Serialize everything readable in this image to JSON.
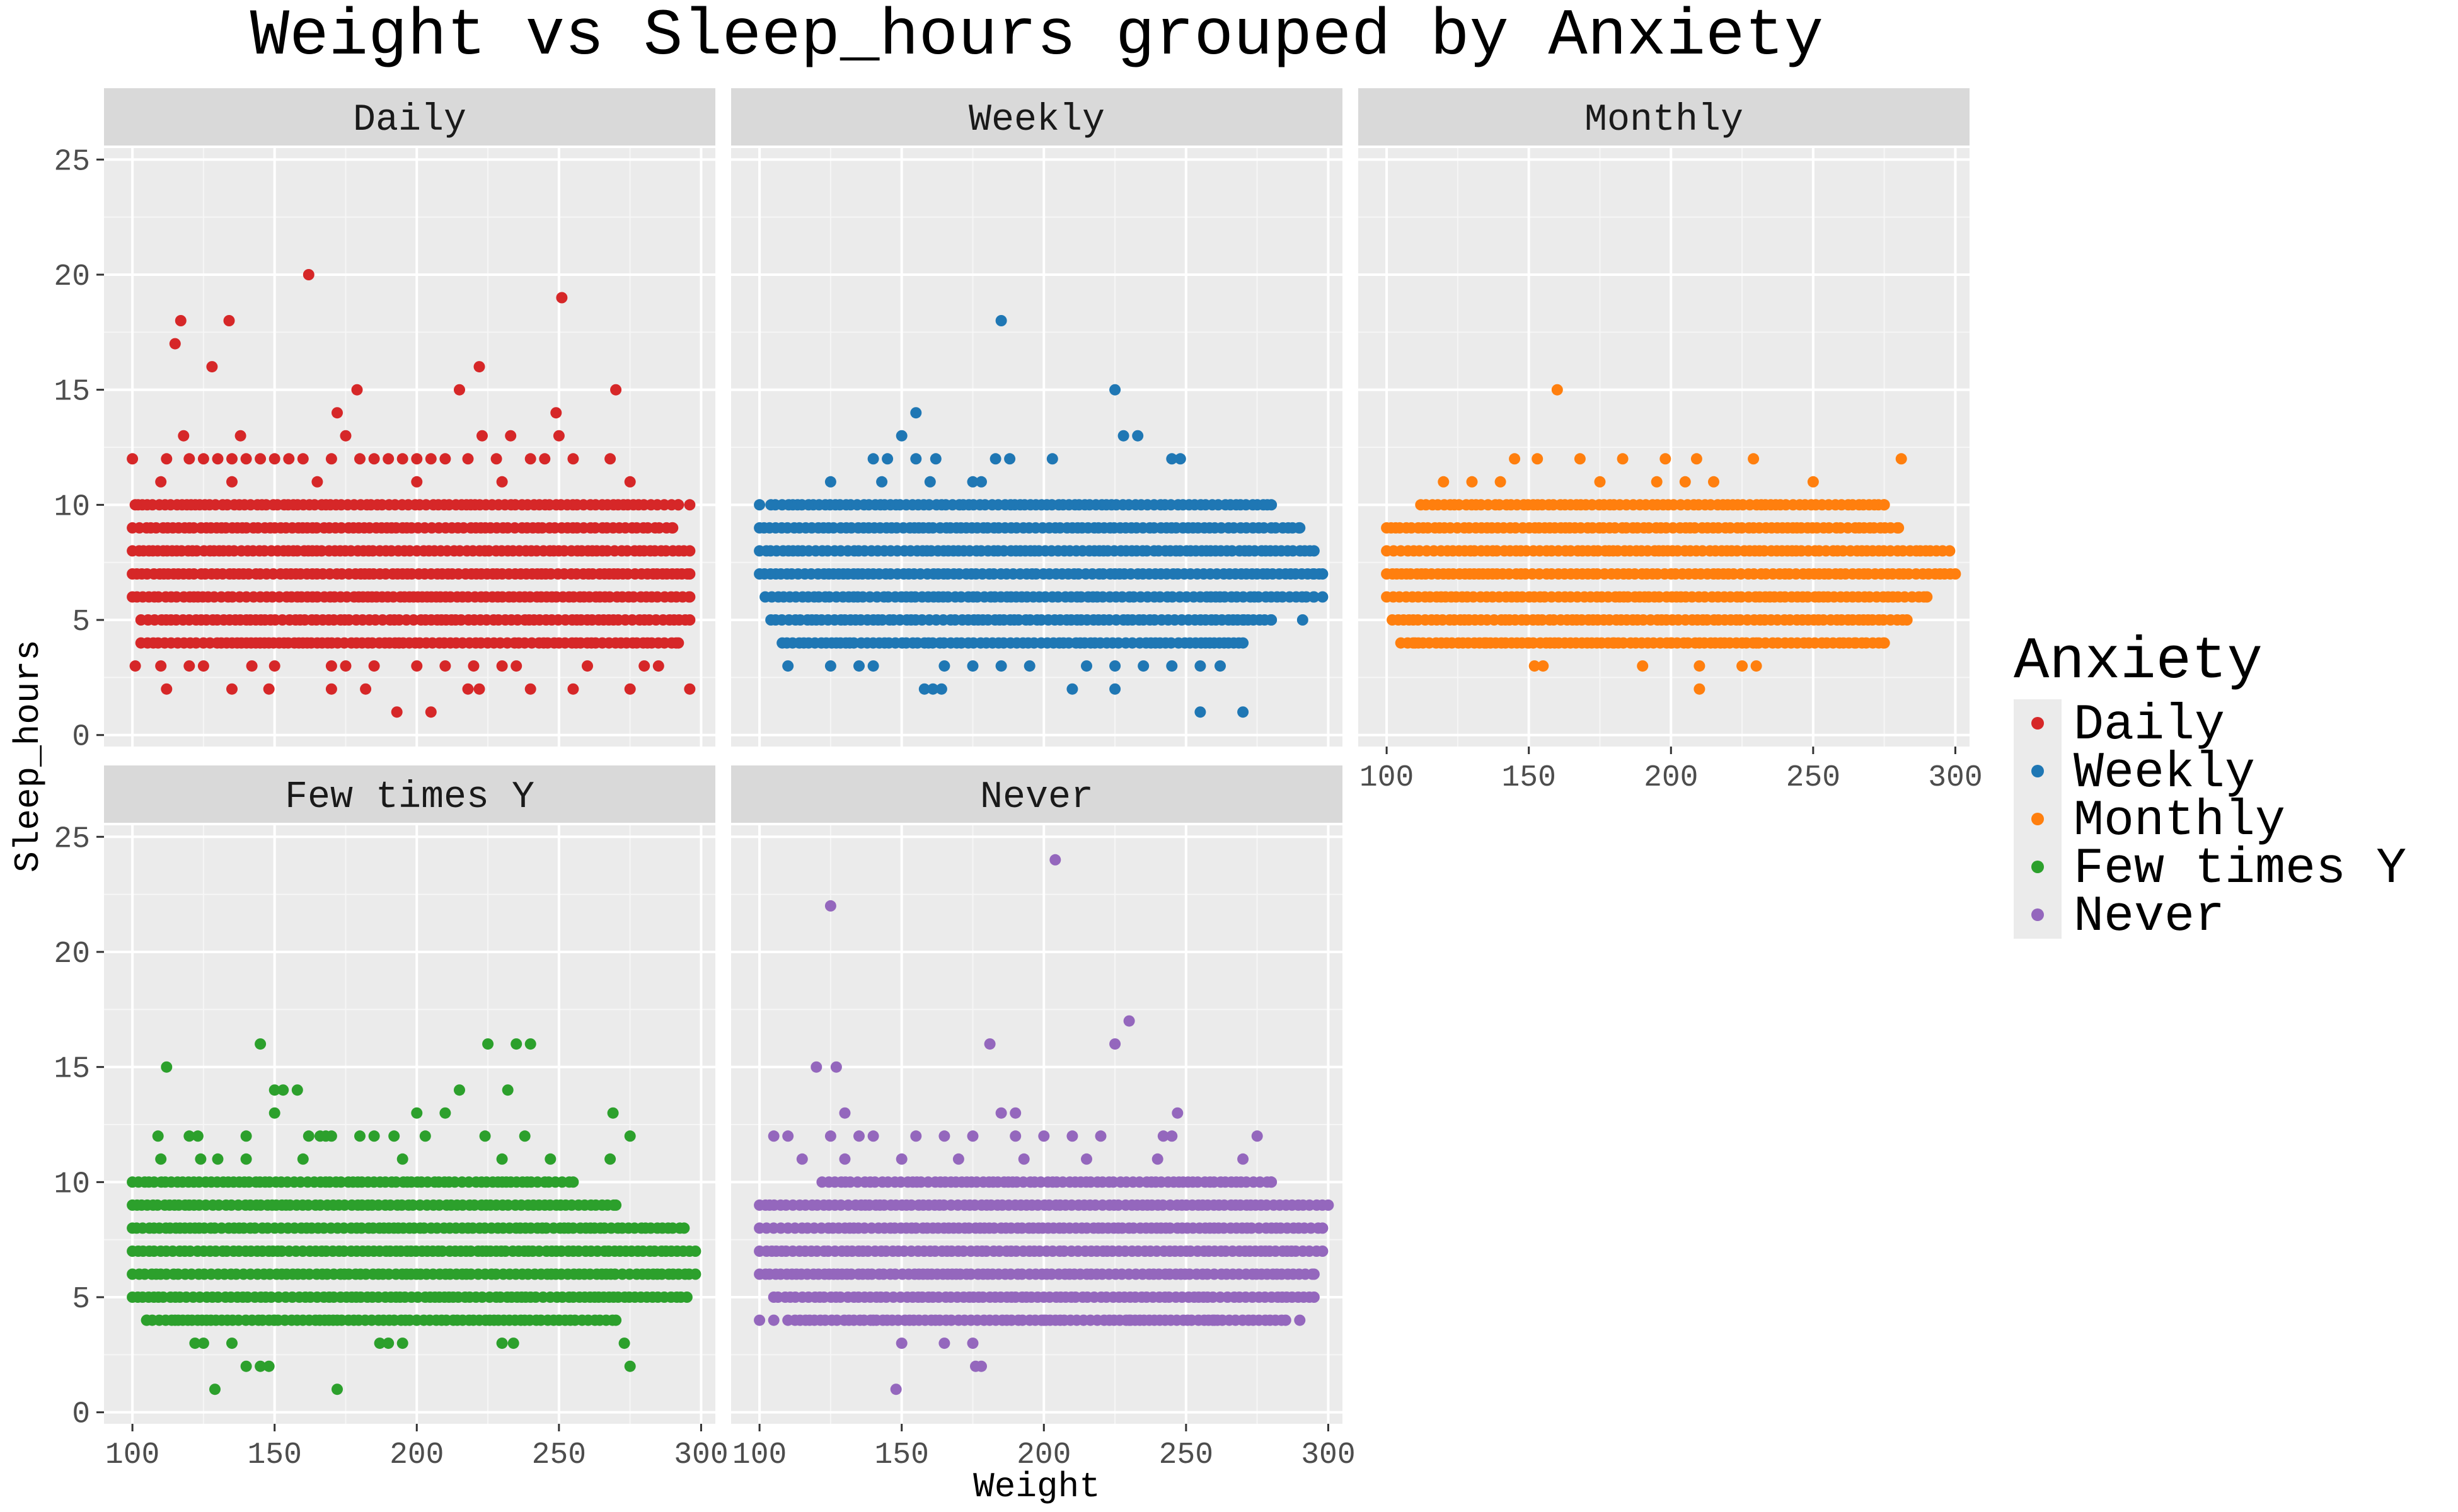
{
  "chart_data": {
    "type": "scatter",
    "title": "Weight vs Sleep_hours grouped by Anxiety",
    "xlabel": "Weight",
    "ylabel": "Sleep_hours",
    "xlim": [
      90,
      305
    ],
    "ylim": [
      -0.5,
      25.5
    ],
    "x_ticks": [
      100,
      150,
      200,
      250,
      300
    ],
    "y_ticks": [
      0,
      5,
      10,
      15,
      20,
      25
    ],
    "grid": true,
    "facet_layout": "3 columns x 2 rows, shared axes",
    "legend": {
      "title": "Anxiety",
      "position": "right",
      "entries": [
        "Daily",
        "Weekly",
        "Monthly",
        "Few times Y",
        "Never"
      ]
    },
    "series": [
      {
        "name": "Daily",
        "color": "#d62728",
        "points": [
          [
            162,
            20
          ],
          [
            251,
            19
          ],
          [
            117,
            18
          ],
          [
            134,
            18
          ],
          [
            115,
            17
          ],
          [
            128,
            16
          ],
          [
            222,
            16
          ],
          [
            215,
            15
          ],
          [
            179,
            15
          ],
          [
            270,
            15
          ],
          [
            118,
            13
          ],
          [
            138,
            13
          ],
          [
            172,
            14
          ],
          [
            175,
            13
          ],
          [
            223,
            13
          ],
          [
            249,
            14
          ],
          [
            233,
            13
          ],
          [
            250,
            13
          ],
          [
            100,
            12
          ],
          [
            112,
            12
          ],
          [
            120,
            12
          ],
          [
            125,
            12
          ],
          [
            130,
            12
          ],
          [
            135,
            12
          ],
          [
            140,
            12
          ],
          [
            145,
            12
          ],
          [
            150,
            12
          ],
          [
            155,
            12
          ],
          [
            160,
            12
          ],
          [
            170,
            12
          ],
          [
            180,
            12
          ],
          [
            185,
            12
          ],
          [
            190,
            12
          ],
          [
            195,
            12
          ],
          [
            200,
            12
          ],
          [
            205,
            12
          ],
          [
            210,
            12
          ],
          [
            218,
            12
          ],
          [
            228,
            12
          ],
          [
            240,
            12
          ],
          [
            245,
            12
          ],
          [
            255,
            12
          ],
          [
            268,
            12
          ],
          [
            101,
            3
          ],
          [
            110,
            3
          ],
          [
            120,
            3
          ],
          [
            125,
            3
          ],
          [
            142,
            3
          ],
          [
            150,
            3
          ],
          [
            170,
            3
          ],
          [
            175,
            3
          ],
          [
            185,
            3
          ],
          [
            200,
            3
          ],
          [
            210,
            3
          ],
          [
            220,
            3
          ],
          [
            230,
            3
          ],
          [
            235,
            3
          ],
          [
            260,
            3
          ],
          [
            280,
            3
          ],
          [
            285,
            3
          ],
          [
            112,
            2
          ],
          [
            135,
            2
          ],
          [
            148,
            2
          ],
          [
            170,
            2
          ],
          [
            182,
            2
          ],
          [
            218,
            2
          ],
          [
            222,
            2
          ],
          [
            240,
            2
          ],
          [
            255,
            2
          ],
          [
            275,
            2
          ],
          [
            296,
            2
          ],
          [
            193,
            1
          ],
          [
            205,
            1
          ],
          [
            101,
            10
          ],
          [
            296,
            10
          ],
          [
            110,
            11
          ],
          [
            135,
            11
          ],
          [
            165,
            11
          ],
          [
            200,
            11
          ],
          [
            230,
            11
          ],
          [
            275,
            11
          ]
        ],
        "bands": [
          {
            "y": 9,
            "x_from": 100,
            "x_to": 290
          },
          {
            "y": 8,
            "x_from": 100,
            "x_to": 296
          },
          {
            "y": 7,
            "x_from": 100,
            "x_to": 296
          },
          {
            "y": 6,
            "x_from": 100,
            "x_to": 296
          },
          {
            "y": 5,
            "x_from": 103,
            "x_to": 296
          },
          {
            "y": 4,
            "x_from": 103,
            "x_to": 292
          },
          {
            "y": 10,
            "x_from": 102,
            "x_to": 292
          }
        ]
      },
      {
        "name": "Weekly",
        "color": "#1f77b4",
        "points": [
          [
            185,
            18
          ],
          [
            225,
            15
          ],
          [
            155,
            14
          ],
          [
            150,
            13
          ],
          [
            228,
            13
          ],
          [
            233,
            13
          ],
          [
            145,
            12
          ],
          [
            155,
            12
          ],
          [
            162,
            12
          ],
          [
            183,
            12
          ],
          [
            188,
            12
          ],
          [
            203,
            12
          ],
          [
            245,
            12
          ],
          [
            248,
            12
          ],
          [
            140,
            12
          ],
          [
            125,
            11
          ],
          [
            160,
            11
          ],
          [
            178,
            11
          ],
          [
            175,
            11
          ],
          [
            143,
            11
          ],
          [
            110,
            3
          ],
          [
            125,
            3
          ],
          [
            135,
            3
          ],
          [
            140,
            3
          ],
          [
            165,
            3
          ],
          [
            175,
            3
          ],
          [
            185,
            3
          ],
          [
            195,
            3
          ],
          [
            215,
            3
          ],
          [
            225,
            3
          ],
          [
            235,
            3
          ],
          [
            245,
            3
          ],
          [
            255,
            3
          ],
          [
            262,
            3
          ],
          [
            158,
            2
          ],
          [
            161,
            2
          ],
          [
            164,
            2
          ],
          [
            210,
            2
          ],
          [
            225,
            2
          ],
          [
            255,
            1
          ],
          [
            270,
            1
          ],
          [
            100,
            10
          ],
          [
            295,
            7
          ],
          [
            298,
            6
          ],
          [
            270,
            5
          ],
          [
            291,
            5
          ]
        ],
        "bands": [
          {
            "y": 10,
            "x_from": 104,
            "x_to": 280
          },
          {
            "y": 9,
            "x_from": 100,
            "x_to": 290
          },
          {
            "y": 8,
            "x_from": 100,
            "x_to": 295
          },
          {
            "y": 7,
            "x_from": 100,
            "x_to": 298
          },
          {
            "y": 6,
            "x_from": 102,
            "x_to": 295
          },
          {
            "y": 5,
            "x_from": 104,
            "x_to": 280
          },
          {
            "y": 4,
            "x_from": 108,
            "x_to": 270
          }
        ]
      },
      {
        "name": "Monthly",
        "color": "#ff7f0e",
        "points": [
          [
            160,
            15
          ],
          [
            145,
            12
          ],
          [
            153,
            12
          ],
          [
            168,
            12
          ],
          [
            183,
            12
          ],
          [
            198,
            12
          ],
          [
            209,
            12
          ],
          [
            229,
            12
          ],
          [
            281,
            12
          ],
          [
            120,
            11
          ],
          [
            130,
            11
          ],
          [
            140,
            11
          ],
          [
            175,
            11
          ],
          [
            195,
            11
          ],
          [
            205,
            11
          ],
          [
            215,
            11
          ],
          [
            250,
            11
          ],
          [
            152,
            3
          ],
          [
            155,
            3
          ],
          [
            190,
            3
          ],
          [
            210,
            3
          ],
          [
            225,
            3
          ],
          [
            230,
            3
          ],
          [
            210,
            2
          ],
          [
            110,
            4
          ],
          [
            135,
            4
          ],
          [
            150,
            4
          ],
          [
            180,
            4
          ],
          [
            200,
            4
          ],
          [
            230,
            4
          ],
          [
            265,
            4
          ]
        ],
        "bands": [
          {
            "y": 10,
            "x_from": 112,
            "x_to": 275
          },
          {
            "y": 9,
            "x_from": 100,
            "x_to": 280
          },
          {
            "y": 8,
            "x_from": 100,
            "x_to": 298
          },
          {
            "y": 7,
            "x_from": 100,
            "x_to": 300
          },
          {
            "y": 6,
            "x_from": 100,
            "x_to": 290
          },
          {
            "y": 5,
            "x_from": 102,
            "x_to": 283
          },
          {
            "y": 4,
            "x_from": 105,
            "x_to": 275
          }
        ]
      },
      {
        "name": "Few times Y",
        "color": "#2ca02c",
        "points": [
          [
            145,
            16
          ],
          [
            225,
            16
          ],
          [
            235,
            16
          ],
          [
            240,
            16
          ],
          [
            112,
            15
          ],
          [
            150,
            14
          ],
          [
            153,
            14
          ],
          [
            158,
            14
          ],
          [
            215,
            14
          ],
          [
            232,
            14
          ],
          [
            150,
            13
          ],
          [
            200,
            13
          ],
          [
            210,
            13
          ],
          [
            269,
            13
          ],
          [
            109,
            12
          ],
          [
            120,
            12
          ],
          [
            123,
            12
          ],
          [
            140,
            12
          ],
          [
            162,
            12
          ],
          [
            166,
            12
          ],
          [
            168,
            12
          ],
          [
            170,
            12
          ],
          [
            180,
            12
          ],
          [
            185,
            12
          ],
          [
            192,
            12
          ],
          [
            203,
            12
          ],
          [
            224,
            12
          ],
          [
            238,
            12
          ],
          [
            275,
            12
          ],
          [
            110,
            11
          ],
          [
            124,
            11
          ],
          [
            130,
            11
          ],
          [
            140,
            11
          ],
          [
            160,
            11
          ],
          [
            195,
            11
          ],
          [
            230,
            11
          ],
          [
            247,
            11
          ],
          [
            268,
            11
          ],
          [
            122,
            3
          ],
          [
            125,
            3
          ],
          [
            135,
            3
          ],
          [
            187,
            3
          ],
          [
            190,
            3
          ],
          [
            195,
            3
          ],
          [
            230,
            3
          ],
          [
            234,
            3
          ],
          [
            273,
            3
          ],
          [
            140,
            2
          ],
          [
            145,
            2
          ],
          [
            148,
            2
          ],
          [
            275,
            2
          ],
          [
            129,
            1
          ],
          [
            172,
            1
          ],
          [
            105,
            4
          ],
          [
            115,
            4
          ],
          [
            150,
            4
          ],
          [
            200,
            4
          ],
          [
            250,
            4
          ]
        ],
        "bands": [
          {
            "y": 10,
            "x_from": 100,
            "x_to": 255
          },
          {
            "y": 9,
            "x_from": 100,
            "x_to": 270
          },
          {
            "y": 8,
            "x_from": 100,
            "x_to": 294
          },
          {
            "y": 7,
            "x_from": 100,
            "x_to": 298
          },
          {
            "y": 6,
            "x_from": 100,
            "x_to": 298
          },
          {
            "y": 5,
            "x_from": 100,
            "x_to": 295
          },
          {
            "y": 4,
            "x_from": 105,
            "x_to": 270
          }
        ]
      },
      {
        "name": "Never",
        "color": "#9467bd",
        "points": [
          [
            204,
            24
          ],
          [
            125,
            22
          ],
          [
            230,
            17
          ],
          [
            181,
            16
          ],
          [
            225,
            16
          ],
          [
            120,
            15
          ],
          [
            127,
            15
          ],
          [
            247,
            13
          ],
          [
            130,
            13
          ],
          [
            185,
            13
          ],
          [
            190,
            13
          ],
          [
            105,
            12
          ],
          [
            110,
            12
          ],
          [
            125,
            12
          ],
          [
            135,
            12
          ],
          [
            140,
            12
          ],
          [
            155,
            12
          ],
          [
            165,
            12
          ],
          [
            175,
            12
          ],
          [
            190,
            12
          ],
          [
            200,
            12
          ],
          [
            210,
            12
          ],
          [
            220,
            12
          ],
          [
            242,
            12
          ],
          [
            245,
            12
          ],
          [
            275,
            12
          ],
          [
            115,
            11
          ],
          [
            130,
            11
          ],
          [
            150,
            11
          ],
          [
            170,
            11
          ],
          [
            193,
            11
          ],
          [
            215,
            11
          ],
          [
            240,
            11
          ],
          [
            270,
            11
          ],
          [
            150,
            3
          ],
          [
            165,
            3
          ],
          [
            175,
            3
          ],
          [
            178,
            2
          ],
          [
            176,
            2
          ],
          [
            148,
            1
          ],
          [
            100,
            4
          ],
          [
            105,
            4
          ],
          [
            140,
            4
          ],
          [
            200,
            4
          ],
          [
            230,
            4
          ],
          [
            260,
            4
          ],
          [
            290,
            4
          ]
        ],
        "bands": [
          {
            "y": 10,
            "x_from": 122,
            "x_to": 280
          },
          {
            "y": 9,
            "x_from": 100,
            "x_to": 300
          },
          {
            "y": 8,
            "x_from": 100,
            "x_to": 298
          },
          {
            "y": 7,
            "x_from": 100,
            "x_to": 298
          },
          {
            "y": 6,
            "x_from": 100,
            "x_to": 295
          },
          {
            "y": 5,
            "x_from": 105,
            "x_to": 295
          },
          {
            "y": 4,
            "x_from": 110,
            "x_to": 285
          }
        ]
      }
    ]
  }
}
